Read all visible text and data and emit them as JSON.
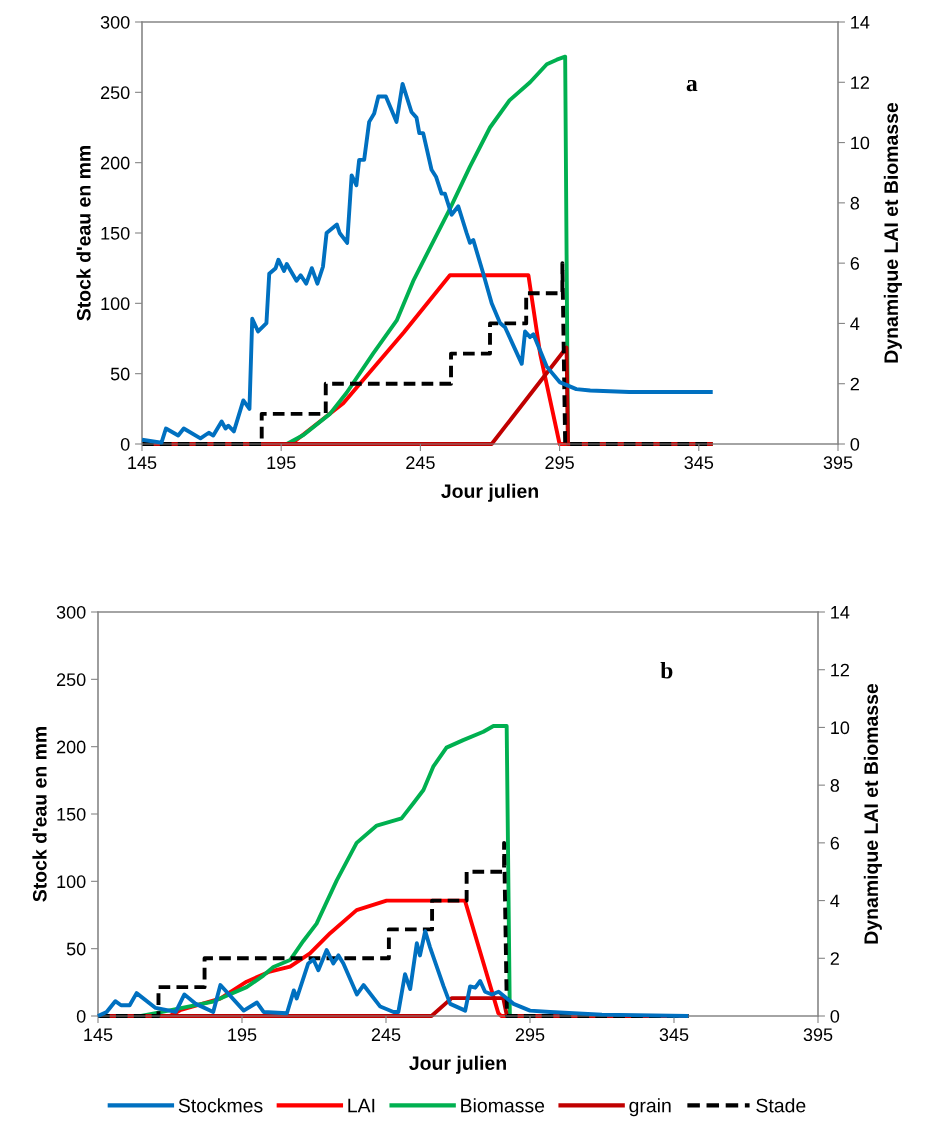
{
  "chart_data": [
    {
      "type": "line",
      "annotations": [
        "a"
      ],
      "xlabel": "Jour julien",
      "ylabel": "Stock d'eau en mm",
      "y2label": "Dynamique LAI et Biomasse",
      "xlim": [
        145,
        395
      ],
      "xticks": [
        145,
        195,
        245,
        295,
        345,
        395
      ],
      "ylim": [
        0,
        300
      ],
      "yticks": [
        0,
        50,
        100,
        150,
        200,
        250,
        300
      ],
      "y2lim": [
        0,
        14
      ],
      "y2ticks": [
        0,
        2,
        4,
        6,
        8,
        10,
        12,
        14
      ],
      "grid": false,
      "legend": false,
      "marker": "none",
      "series": [
        {
          "color": "#0070c0",
          "x": [
            145,
            152,
            153.6,
            158,
            160,
            166,
            169,
            170.6,
            173.6,
            175,
            176,
            178,
            181.4,
            183.6,
            184.6,
            186.7,
            189.7,
            190.7,
            193,
            194,
            196,
            197,
            200.5,
            202,
            204,
            206,
            208,
            210,
            211.3,
            215,
            216,
            218.7,
            220.3,
            222,
            223,
            224.8,
            226.6,
            228.4,
            229.9,
            232.6,
            236.4,
            238.6,
            241.8,
            243.6,
            244.6,
            246,
            249,
            250.6,
            252.6,
            253.8,
            256.2,
            258.6,
            261.6,
            262.8,
            264,
            267.6,
            270.6,
            273.6,
            275.4,
            281.4,
            282.6,
            284.4,
            285.6,
            290.4,
            295,
            301,
            306,
            320,
            335,
            350
          ],
          "values": [
            3,
            1,
            11,
            6,
            11,
            4,
            8,
            6,
            16,
            11,
            13,
            9,
            31,
            25,
            89,
            80,
            86,
            121,
            125,
            131,
            123,
            128,
            116,
            120,
            114,
            125,
            114,
            126,
            150,
            156,
            150,
            143,
            191,
            184,
            202,
            202,
            229,
            235,
            247,
            247,
            229,
            256,
            236,
            232,
            221,
            221,
            195,
            190,
            178,
            178,
            163,
            169,
            150,
            143,
            145,
            121,
            100,
            86,
            83,
            57,
            80,
            76,
            78,
            55,
            44,
            39,
            38,
            37,
            37,
            37
          ]
        },
        {
          "axis": "y2",
          "color": "#ff0000",
          "x": [
            145,
            198.6,
            217.3,
            239,
            255.6,
            283.8,
            288,
            295,
            350
          ],
          "values": [
            0,
            0,
            1.35,
            3.7,
            5.6,
            5.6,
            3.0,
            0,
            0
          ]
        },
        {
          "axis": "y2",
          "color": "#00b050",
          "x": [
            145,
            197,
            203,
            212.5,
            218.5,
            228,
            236.5,
            242.4,
            248.4,
            255.6,
            262.8,
            270,
            277,
            284.4,
            290.4,
            294,
            297,
            298,
            350
          ],
          "values": [
            0,
            0,
            0.3,
            1.0,
            1.7,
            3.0,
            4.1,
            5.4,
            6.5,
            7.8,
            9.2,
            10.5,
            11.4,
            12.0,
            12.6,
            12.75,
            12.85,
            0,
            0
          ]
        },
        {
          "axis": "y2",
          "color": "#c00000",
          "x": [
            145,
            270.6,
            297.5,
            298,
            350
          ],
          "values": [
            0,
            0,
            3.2,
            0,
            0
          ]
        },
        {
          "axis": "y2",
          "color": "#000000",
          "line_style": "dashed",
          "x": [
            145,
            188,
            188,
            211,
            211,
            256,
            256,
            270,
            270,
            283,
            283,
            296,
            296,
            297,
            350
          ],
          "values": [
            0,
            0,
            1,
            1,
            2,
            2,
            3,
            3,
            4,
            4,
            5,
            5,
            6,
            0,
            0
          ]
        }
      ]
    },
    {
      "type": "line",
      "annotations": [
        "b"
      ],
      "xlabel": "Jour julien",
      "ylabel": "Stock d'eau en mm",
      "y2label": "Dynamique LAI et Biomasse",
      "xlim": [
        145,
        395
      ],
      "xticks": [
        145,
        195,
        245,
        295,
        345,
        395
      ],
      "ylim": [
        0,
        300
      ],
      "yticks": [
        0,
        50,
        100,
        150,
        200,
        250,
        300
      ],
      "y2lim": [
        0,
        14
      ],
      "y2ticks": [
        0,
        2,
        4,
        6,
        8,
        10,
        12,
        14
      ],
      "grid": false,
      "legend": "bottom",
      "marker": "none",
      "series": [
        {
          "name": "Stockmes",
          "color": "#0070c0",
          "x": [
            145,
            148,
            151,
            153,
            156,
            158.4,
            165,
            172,
            175,
            179,
            185,
            187.5,
            195.6,
            200.2,
            202.5,
            210.6,
            213,
            214,
            218,
            219.8,
            221.5,
            224.4,
            226.7,
            228.5,
            230.2,
            234.9,
            237.2,
            243,
            247.6,
            249.3,
            251.6,
            253.4,
            255.7,
            256.8,
            258.6,
            260.3,
            265,
            267.3,
            272.5,
            274.2,
            276,
            277.7,
            279.4,
            281.8,
            284.1,
            289.3,
            295,
            302,
            320,
            350
          ],
          "values": [
            0,
            3,
            11,
            8,
            8,
            17,
            6,
            3,
            16,
            9,
            3,
            23,
            4,
            10,
            3,
            2,
            19,
            13,
            39,
            42,
            34,
            49,
            39,
            45,
            39,
            16,
            23,
            7,
            3,
            3,
            31,
            20,
            54,
            45,
            63,
            51,
            22,
            9,
            4,
            22,
            21,
            26,
            18,
            16,
            18,
            9,
            4,
            3,
            1,
            0
          ]
        },
        {
          "name": "LAI",
          "axis": "y2",
          "color": "#ff0000",
          "x": [
            145,
            170,
            173.5,
            187.4,
            196.6,
            204.7,
            211.7,
            218.6,
            225.6,
            234.8,
            245.2,
            272.4,
            284,
            285,
            350
          ],
          "values": [
            0,
            0,
            0.2,
            0.6,
            1.19,
            1.54,
            1.71,
            2.17,
            2.87,
            3.67,
            4.0,
            4.0,
            0.1,
            0,
            0
          ]
        },
        {
          "name": "Biomasse",
          "axis": "y2",
          "color": "#00b050",
          "x": [
            145,
            160,
            167.7,
            185,
            196.6,
            202.4,
            205.9,
            211.7,
            216.3,
            220.9,
            227.9,
            234.8,
            241.8,
            250.4,
            254.5,
            258,
            261.4,
            266,
            271.8,
            278.8,
            282.3,
            286.9,
            288,
            350
          ],
          "values": [
            0,
            0,
            0.15,
            0.5,
            1.0,
            1.4,
            1.7,
            1.94,
            2.6,
            3.2,
            4.7,
            6.0,
            6.6,
            6.85,
            7.37,
            7.83,
            8.64,
            9.3,
            9.56,
            9.85,
            10.05,
            10.05,
            0,
            0
          ]
        },
        {
          "name": "grain",
          "axis": "y2",
          "color": "#c00000",
          "x": [
            145,
            260.8,
            267.8,
            285.7,
            287,
            350
          ],
          "values": [
            0,
            0,
            0.62,
            0.62,
            0,
            0
          ]
        },
        {
          "name": "Stade",
          "axis": "y2",
          "color": "#000000",
          "line_style": "dashed",
          "x": [
            145,
            166,
            166,
            182,
            182,
            246,
            246,
            261,
            261,
            273,
            273,
            286,
            286,
            287,
            350
          ],
          "values": [
            0,
            0,
            1,
            1,
            2,
            2,
            3,
            3,
            4,
            4,
            5,
            5,
            6,
            0,
            0
          ]
        }
      ]
    }
  ]
}
